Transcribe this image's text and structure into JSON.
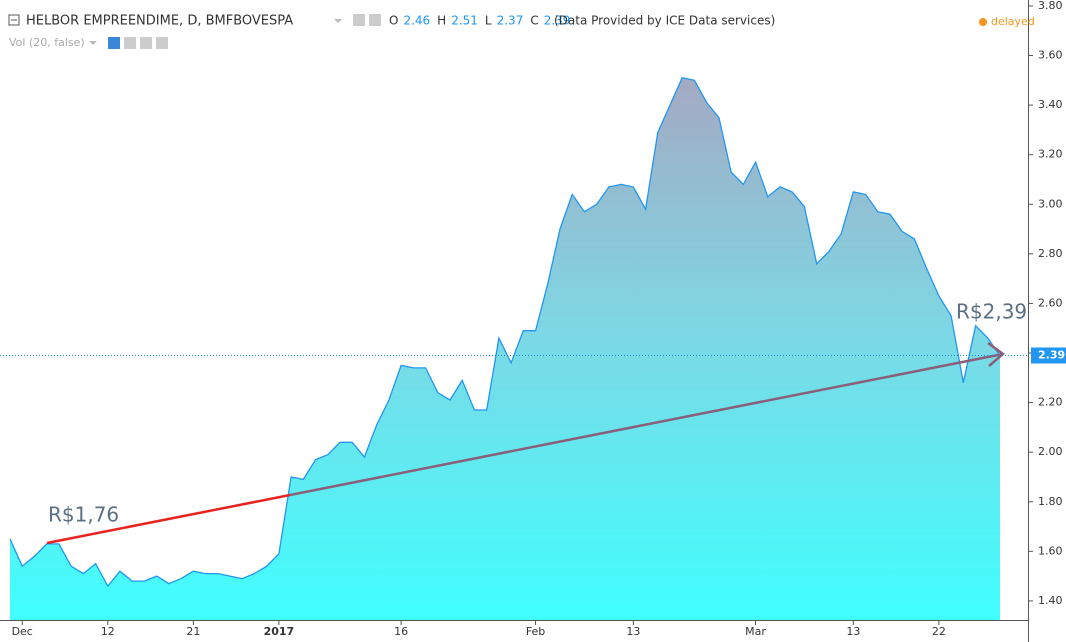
{
  "chart_data": {
    "type": "area",
    "title": "HELBOR EMPREENDIME, D, BMFBOVESPA",
    "ohlc": [
      {
        "label": "O",
        "value": 2.46
      },
      {
        "label": "H",
        "value": 2.51
      },
      {
        "label": "L",
        "value": 2.37
      },
      {
        "label": "C",
        "value": 2.39
      }
    ],
    "source_note": "(Data Provided by ICE Data services)",
    "volume_label": "Vol (20, false)",
    "status": "delayed",
    "last_price": 2.39,
    "annotations": [
      "R$1,76",
      "R$2,39"
    ],
    "color": "#2196f3",
    "categories": [
      null,
      "Dec",
      null,
      null,
      null,
      null,
      null,
      null,
      "12",
      null,
      null,
      null,
      null,
      null,
      null,
      "21",
      null,
      null,
      null,
      null,
      null,
      null,
      "2017",
      null,
      null,
      null,
      null,
      null,
      null,
      null,
      null,
      null,
      "16",
      null,
      null,
      null,
      null,
      null,
      null,
      null,
      null,
      null,
      null,
      "Feb",
      null,
      null,
      null,
      null,
      null,
      null,
      null,
      "13",
      null,
      null,
      null,
      null,
      null,
      null,
      null,
      null,
      null,
      "Mar",
      null,
      null,
      null,
      null,
      null,
      null,
      null,
      "13",
      null,
      null,
      null,
      null,
      null,
      null,
      "22",
      null,
      null,
      null,
      null,
      null
    ],
    "values": [
      1.65,
      1.54,
      1.58,
      1.63,
      1.63,
      1.54,
      1.51,
      1.55,
      1.46,
      1.52,
      1.48,
      1.48,
      1.5,
      1.47,
      1.49,
      1.52,
      1.51,
      1.51,
      1.5,
      1.49,
      1.51,
      1.54,
      1.59,
      1.9,
      1.89,
      1.97,
      1.99,
      2.04,
      2.04,
      1.98,
      2.11,
      2.21,
      2.35,
      2.34,
      2.34,
      2.24,
      2.21,
      2.29,
      2.17,
      2.17,
      2.46,
      2.36,
      2.49,
      2.49,
      2.68,
      2.9,
      3.04,
      2.97,
      3.0,
      3.07,
      3.08,
      3.07,
      2.98,
      3.29,
      3.4,
      3.51,
      3.5,
      3.41,
      3.35,
      3.13,
      3.08,
      3.17,
      3.03,
      3.07,
      3.05,
      2.99,
      2.76,
      2.81,
      2.88,
      3.05,
      3.04,
      2.97,
      2.96,
      2.89,
      2.86,
      2.74,
      2.63,
      2.55,
      2.28,
      2.51,
      2.46,
      2.39
    ],
    "ylim": [
      1.323,
      3.824
    ],
    "yticks": [
      {
        "value": 1.4,
        "label": "1.40"
      },
      {
        "value": 1.6,
        "label": "1.60"
      },
      {
        "value": 1.8,
        "label": "1.80"
      },
      {
        "value": 2.0,
        "label": "2.00"
      },
      {
        "value": 2.2,
        "label": "2.20"
      },
      {
        "value": 2.4,
        "label": "2.40"
      },
      {
        "value": 2.6,
        "label": "2.60"
      },
      {
        "value": 2.8,
        "label": "2.80"
      },
      {
        "value": 3.0,
        "label": "3.00"
      },
      {
        "value": 3.2,
        "label": "3.20"
      },
      {
        "value": 3.4,
        "label": "3.40"
      },
      {
        "value": 3.6,
        "label": "3.60"
      },
      {
        "value": 3.8,
        "label": "3.80"
      }
    ]
  }
}
